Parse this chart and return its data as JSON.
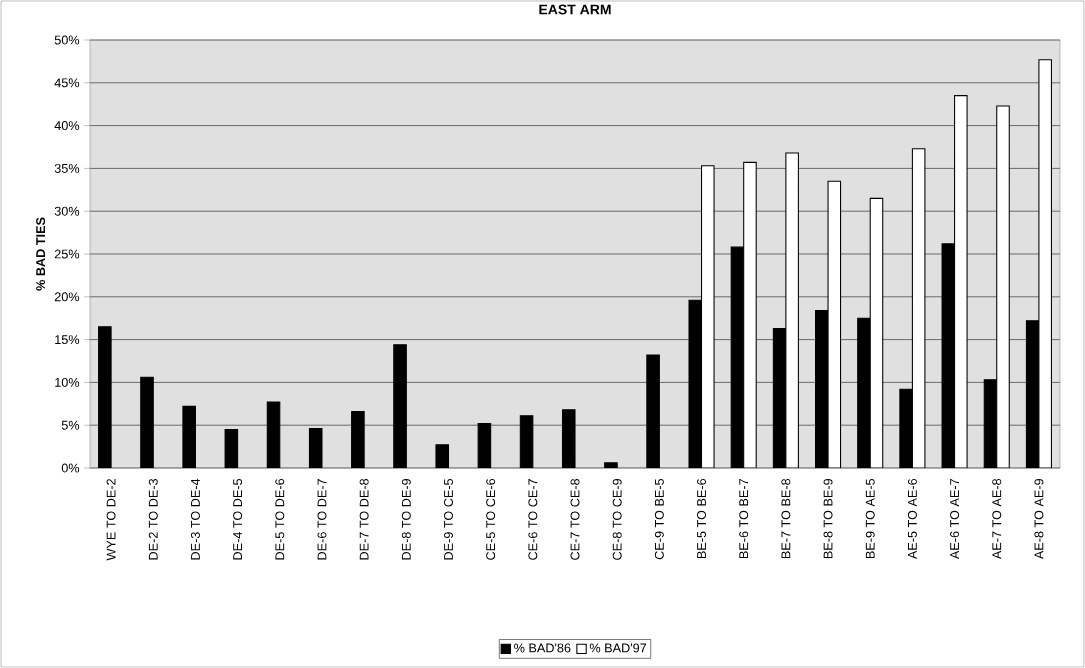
{
  "chart_data": {
    "type": "bar",
    "title": "EAST ARM",
    "ylabel": "% BAD TIES",
    "categories": [
      "WYE TO DE-2",
      "DE-2 TO DE-3",
      "DE-3 TO DE-4",
      "DE-4 TO DE-5",
      "DE-5 TO DE-6",
      "DE-6 TO DE-7",
      "DE-7 TO DE-8",
      "DE-8 TO DE-9",
      "DE-9 TO CE-5",
      "CE-5 TO CE-6",
      "CE-6 TO CE-7",
      "CE-7 TO CE-8",
      "CE-8 TO CE-9",
      "CE-9 TO BE-5",
      "BE-5 TO BE-6",
      "BE-6 TO BE-7",
      "BE-7 TO BE-8",
      "BE-8 TO BE-9",
      "BE-9 TO AE-5",
      "AE-5 TO AE-6",
      "AE-6 TO AE-7",
      "AE-7 TO AE-8",
      "AE-8 TO AE-9"
    ],
    "series": [
      {
        "name": "% BAD'86",
        "color": "#000000",
        "values": [
          16.5,
          10.6,
          7.2,
          4.5,
          7.7,
          4.6,
          6.6,
          14.4,
          2.7,
          5.2,
          6.1,
          6.8,
          0.6,
          13.2,
          19.6,
          25.8,
          16.3,
          18.4,
          17.5,
          9.2,
          26.2,
          10.3,
          17.2
        ]
      },
      {
        "name": "% BAD'97",
        "color": "#ffffff",
        "values": [
          null,
          null,
          null,
          null,
          null,
          null,
          null,
          null,
          null,
          null,
          null,
          null,
          null,
          null,
          35.3,
          35.7,
          36.8,
          33.5,
          31.5,
          37.3,
          43.5,
          42.3,
          47.7
        ]
      }
    ],
    "ylim": [
      0,
      50
    ],
    "yticks": [
      {
        "value": 0,
        "label": "0%"
      },
      {
        "value": 5,
        "label": "5%"
      },
      {
        "value": 10,
        "label": "10%"
      },
      {
        "value": 15,
        "label": "15%"
      },
      {
        "value": 20,
        "label": "20%"
      },
      {
        "value": 25,
        "label": "25%"
      },
      {
        "value": 30,
        "label": "30%"
      },
      {
        "value": 35,
        "label": "35%"
      },
      {
        "value": 40,
        "label": "40%"
      },
      {
        "value": 45,
        "label": "45%"
      },
      {
        "value": 50,
        "label": "50%"
      }
    ],
    "grid": "y",
    "legend": "bottom"
  }
}
